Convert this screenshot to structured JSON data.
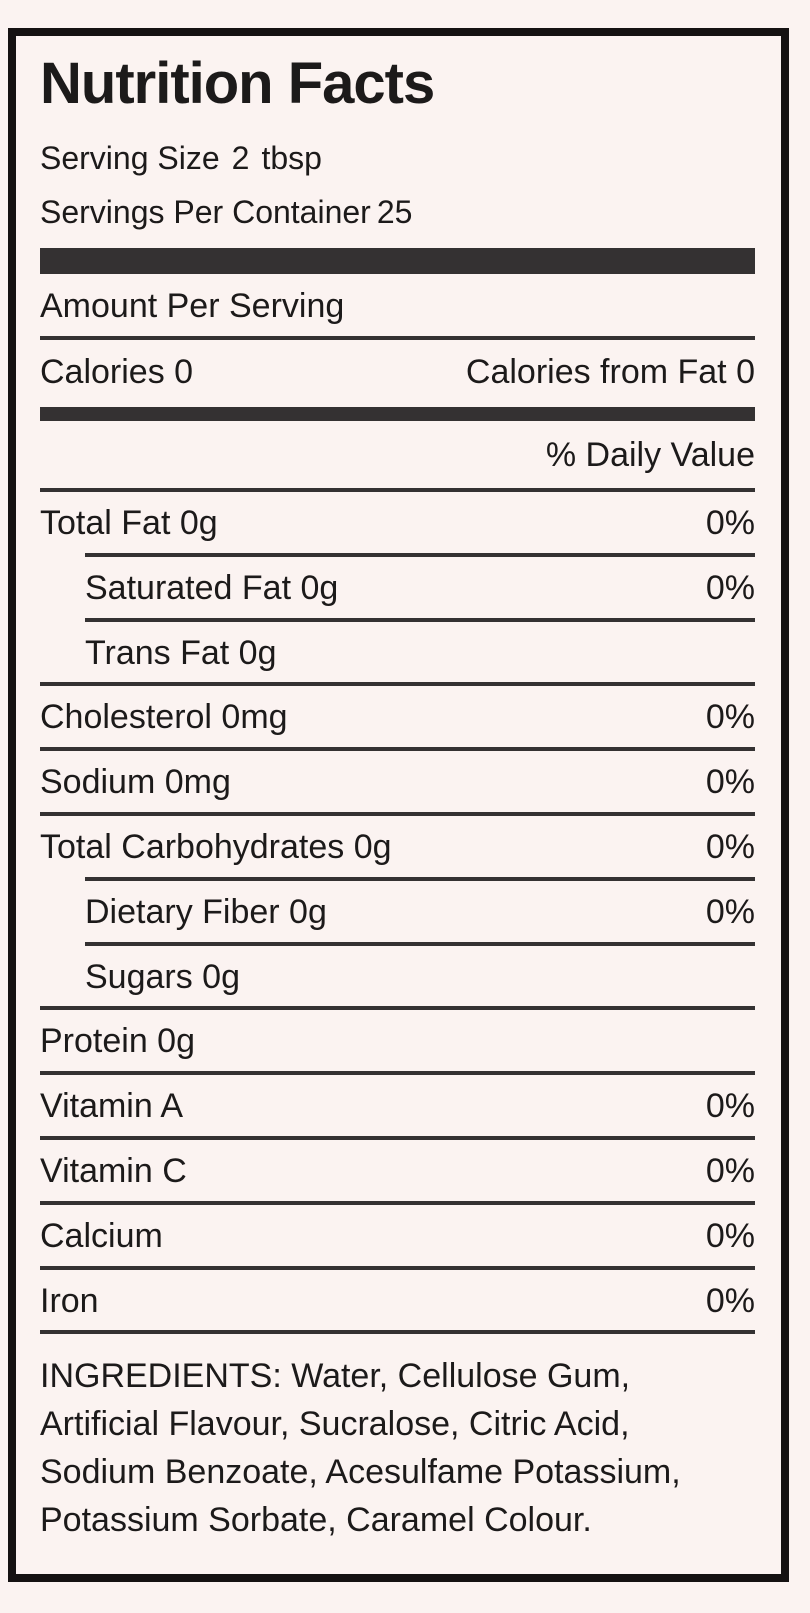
{
  "label": {
    "title": "Nutrition Facts",
    "serving_size": {
      "label": "Serving Size",
      "qty": "2",
      "unit": "tbsp"
    },
    "servings_per_container": {
      "label": "Servings Per Container",
      "value": "25"
    },
    "amount_per_serving": "Amount Per Serving",
    "calories": {
      "label": "Calories",
      "value": "0"
    },
    "calories_from_fat": {
      "label": "Calories from Fat",
      "value": "0"
    },
    "daily_value_header": "% Daily Value",
    "rows": [
      {
        "name": "Total Fat 0g",
        "pct": "0%"
      },
      {
        "name": "Saturated Fat 0g",
        "pct": "0%"
      },
      {
        "name": "Trans Fat 0g",
        "pct": ""
      },
      {
        "name": "Cholesterol 0mg",
        "pct": "0%"
      },
      {
        "name": "Sodium 0mg",
        "pct": "0%"
      },
      {
        "name": "Total Carbohydrates 0g",
        "pct": "0%"
      },
      {
        "name": "Dietary Fiber 0g",
        "pct": "0%"
      },
      {
        "name": "Sugars 0g",
        "pct": ""
      },
      {
        "name": "Protein 0g",
        "pct": ""
      },
      {
        "name": "Vitamin A",
        "pct": "0%"
      },
      {
        "name": "Vitamin C",
        "pct": "0%"
      },
      {
        "name": "Calcium",
        "pct": "0%"
      },
      {
        "name": "Iron",
        "pct": "0%"
      }
    ],
    "ingredients": "INGREDIENTS: Water, Cellulose Gum, Artificial Flavour, Sucralose, Citric Acid, Sodium Benzoate, Acesulfame Potassium, Potassium Sorbate, Caramel Colour."
  },
  "colors": {
    "background": "#fbf3f1",
    "text": "#1c1a1a",
    "rule": "#343132",
    "border": "#151212"
  }
}
